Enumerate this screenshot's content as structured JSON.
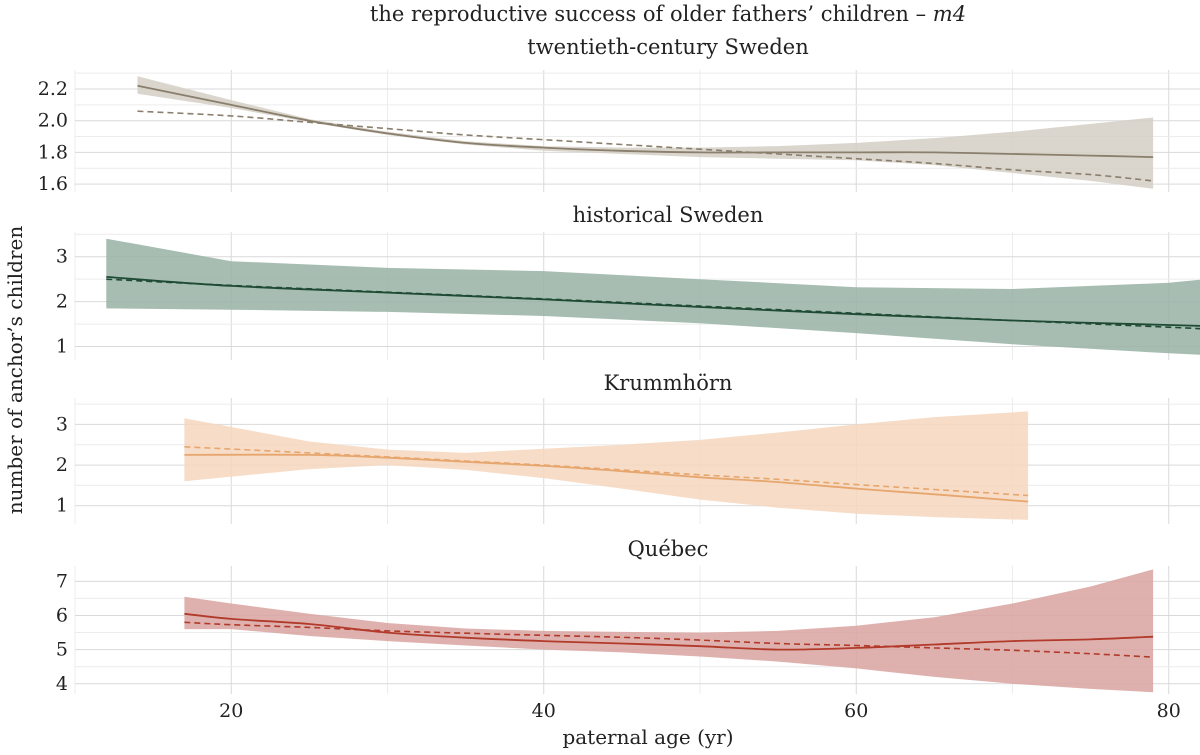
{
  "title": {
    "line1_main": "the reproductive success of older fathers’ children – ",
    "line1_italic": "m4"
  },
  "ylabel": "number of anchor’s children",
  "xlabel": "paternal age (yr)",
  "x_ticks": [
    20,
    40,
    60,
    80
  ],
  "x_tick_labels": [
    "20",
    "40",
    "60",
    "80"
  ],
  "colors": {
    "twentieth": "#8a7e6c",
    "twentieth_band": "#d3cfc4",
    "historical": "#1f4a33",
    "historical_band": "#98b2a4",
    "krummhorn": "#e6a66e",
    "krummhorn_band": "#f6d7bd",
    "quebec": "#b23a2a",
    "quebec_band": "#d9a3a0"
  },
  "chart_data": [
    {
      "type": "line",
      "panel_title": "twentieth-century Sweden",
      "xlim": [
        10,
        82
      ],
      "ylim": [
        1.55,
        2.32
      ],
      "y_ticks": [
        1.6,
        1.8,
        2.0,
        2.2
      ],
      "y_tick_labels": [
        "1.6",
        "1.8",
        "2.0",
        "2.2"
      ],
      "x": [
        14,
        20,
        25,
        30,
        35,
        40,
        45,
        50,
        55,
        60,
        65,
        70,
        75,
        79
      ],
      "fit_solid": [
        2.22,
        2.1,
        2.0,
        1.92,
        1.86,
        1.83,
        1.81,
        1.8,
        1.8,
        1.8,
        1.8,
        1.79,
        1.78,
        1.77
      ],
      "fit_dashed": [
        2.06,
        2.03,
        1.99,
        1.95,
        1.91,
        1.88,
        1.85,
        1.82,
        1.79,
        1.76,
        1.73,
        1.69,
        1.66,
        1.62
      ],
      "ci_lower": [
        2.17,
        2.08,
        1.99,
        1.91,
        1.85,
        1.81,
        1.79,
        1.77,
        1.76,
        1.75,
        1.72,
        1.67,
        1.62,
        1.57
      ],
      "ci_upper": [
        2.28,
        2.13,
        2.01,
        1.93,
        1.87,
        1.84,
        1.83,
        1.83,
        1.84,
        1.86,
        1.89,
        1.93,
        1.98,
        2.02
      ]
    },
    {
      "type": "line",
      "panel_title": "historical Sweden",
      "xlim": [
        10,
        82
      ],
      "ylim": [
        0.7,
        3.55
      ],
      "y_ticks": [
        1,
        2,
        3
      ],
      "y_tick_labels": [
        "1",
        "2",
        "3"
      ],
      "x": [
        12,
        20,
        30,
        40,
        50,
        60,
        70,
        80,
        83
      ],
      "fit_solid": [
        2.55,
        2.35,
        2.2,
        2.05,
        1.88,
        1.72,
        1.58,
        1.48,
        1.45
      ],
      "fit_dashed": [
        2.5,
        2.36,
        2.21,
        2.06,
        1.9,
        1.74,
        1.58,
        1.43,
        1.38
      ],
      "ci_lower": [
        1.85,
        1.82,
        1.77,
        1.68,
        1.52,
        1.3,
        1.05,
        0.85,
        0.8
      ],
      "ci_upper": [
        3.4,
        2.9,
        2.75,
        2.68,
        2.5,
        2.32,
        2.28,
        2.42,
        2.52
      ]
    },
    {
      "type": "line",
      "panel_title": "Krummhörn",
      "xlim": [
        10,
        82
      ],
      "ylim": [
        0.55,
        3.65
      ],
      "y_ticks": [
        1,
        2,
        3
      ],
      "y_tick_labels": [
        "1",
        "2",
        "3"
      ],
      "x": [
        17,
        25,
        30,
        35,
        40,
        45,
        50,
        55,
        60,
        65,
        71
      ],
      "fit_solid": [
        2.25,
        2.25,
        2.18,
        2.08,
        1.98,
        1.85,
        1.7,
        1.58,
        1.42,
        1.28,
        1.1
      ],
      "fit_dashed": [
        2.45,
        2.3,
        2.2,
        2.1,
        2.0,
        1.88,
        1.76,
        1.65,
        1.52,
        1.4,
        1.25
      ],
      "ci_lower": [
        1.6,
        1.9,
        2.0,
        1.88,
        1.68,
        1.42,
        1.15,
        0.95,
        0.8,
        0.72,
        0.65
      ],
      "ci_upper": [
        3.15,
        2.58,
        2.38,
        2.3,
        2.4,
        2.5,
        2.62,
        2.8,
        3.0,
        3.18,
        3.32
      ]
    },
    {
      "type": "line",
      "panel_title": "Québec",
      "xlim": [
        10,
        82
      ],
      "ylim": [
        3.7,
        7.45
      ],
      "y_ticks": [
        4,
        5,
        6,
        7
      ],
      "y_tick_labels": [
        "4",
        "5",
        "6",
        "7"
      ],
      "x": [
        17,
        20,
        25,
        30,
        35,
        40,
        45,
        50,
        55,
        60,
        65,
        70,
        75,
        79
      ],
      "fit_solid": [
        6.05,
        5.9,
        5.75,
        5.5,
        5.35,
        5.25,
        5.18,
        5.1,
        5.0,
        5.05,
        5.15,
        5.25,
        5.3,
        5.38
      ],
      "fit_dashed": [
        5.8,
        5.73,
        5.65,
        5.55,
        5.48,
        5.42,
        5.36,
        5.28,
        5.18,
        5.12,
        5.05,
        4.98,
        4.88,
        4.78
      ],
      "ci_lower": [
        5.6,
        5.6,
        5.4,
        5.25,
        5.12,
        5.0,
        4.92,
        4.8,
        4.65,
        4.45,
        4.2,
        4.0,
        3.85,
        3.75
      ],
      "ci_upper": [
        6.55,
        6.35,
        6.05,
        5.78,
        5.62,
        5.55,
        5.52,
        5.5,
        5.55,
        5.7,
        5.95,
        6.35,
        6.85,
        7.35
      ]
    }
  ]
}
